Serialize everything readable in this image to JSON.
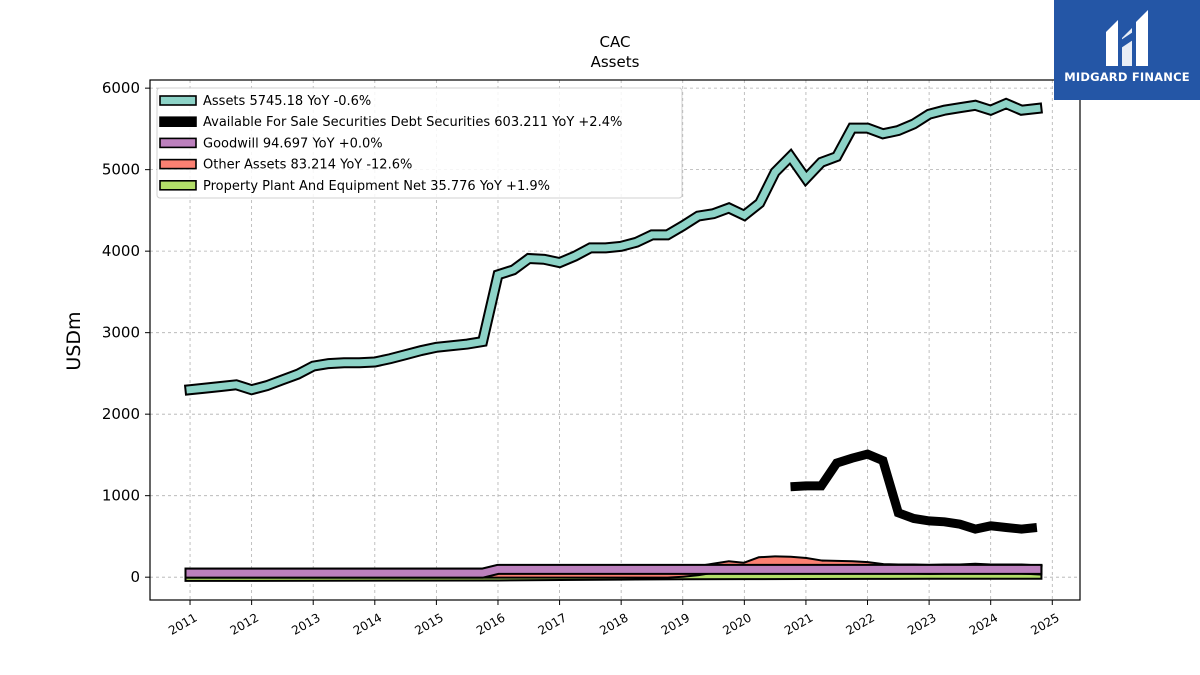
{
  "logo": {
    "text": "MIDGARD FINANCE",
    "icon": "midgard-finance-logo-icon",
    "color": "#2456a6"
  },
  "chart_data": {
    "type": "area",
    "title": "CAC",
    "subtitle": "Assets",
    "ylabel": "USDm",
    "ylim": [
      -280,
      6100
    ],
    "xlim": [
      2010.35,
      2025.45
    ],
    "yticks": [
      0,
      1000,
      2000,
      3000,
      4000,
      5000,
      6000
    ],
    "xticks": [
      "2011",
      "2012",
      "2013",
      "2014",
      "2015",
      "2016",
      "2017",
      "2018",
      "2019",
      "2020",
      "2021",
      "2022",
      "2023",
      "2024",
      "2025"
    ],
    "grid": true,
    "legend_position": "top-left",
    "series": [
      {
        "name": "Assets",
        "legend": "Assets  5745.18 YoY -0.6%",
        "color": "#8dd3c7",
        "style": "band",
        "x": [
          2011.0,
          2011.25,
          2011.5,
          2011.75,
          2012.0,
          2012.25,
          2012.5,
          2012.75,
          2013.0,
          2013.25,
          2013.5,
          2013.75,
          2014.0,
          2014.25,
          2014.5,
          2014.75,
          2015.0,
          2015.25,
          2015.5,
          2015.75,
          2016.0,
          2016.25,
          2016.5,
          2016.75,
          2017.0,
          2017.25,
          2017.5,
          2017.75,
          2018.0,
          2018.25,
          2018.5,
          2018.75,
          2019.0,
          2019.25,
          2019.5,
          2019.75,
          2020.0,
          2020.25,
          2020.5,
          2020.75,
          2021.0,
          2021.25,
          2021.5,
          2021.75,
          2022.0,
          2022.25,
          2022.5,
          2022.75,
          2023.0,
          2023.25,
          2023.5,
          2023.75,
          2024.0,
          2024.25,
          2024.5,
          2024.75
        ],
        "values": [
          2300,
          2320,
          2340,
          2360,
          2300,
          2350,
          2420,
          2490,
          2590,
          2620,
          2630,
          2630,
          2640,
          2680,
          2730,
          2780,
          2820,
          2840,
          2860,
          2890,
          3710,
          3770,
          3910,
          3900,
          3860,
          3940,
          4040,
          4040,
          4060,
          4110,
          4200,
          4200,
          4310,
          4430,
          4460,
          4530,
          4440,
          4590,
          4970,
          5160,
          4890,
          5090,
          5160,
          5510,
          5510,
          5440,
          5480,
          5560,
          5680,
          5730,
          5760,
          5790,
          5730,
          5810,
          5730,
          5750
        ]
      },
      {
        "name": "Available For Sale Securities Debt Securities",
        "legend": "Available For Sale Securities Debt Securities  603.211 YoY +2.4%",
        "color": "#000000",
        "style": "thick-line",
        "x": [
          2020.75,
          2021.0,
          2021.25,
          2021.5,
          2021.75,
          2022.0,
          2022.25,
          2022.5,
          2022.75,
          2023.0,
          2023.25,
          2023.5,
          2023.75,
          2024.0,
          2024.25,
          2024.5,
          2024.75
        ],
        "values": [
          1110,
          1120,
          1120,
          1400,
          1460,
          1510,
          1430,
          790,
          720,
          690,
          680,
          650,
          590,
          630,
          610,
          590,
          610
        ]
      },
      {
        "name": "Goodwill",
        "legend": "Goodwill  94.697 YoY +0.0%",
        "color": "#bc80bd",
        "style": "band",
        "x": [
          2011.0,
          2015.75,
          2016.0,
          2024.75
        ],
        "values": [
          50,
          50,
          95,
          95
        ]
      },
      {
        "name": "Other Assets",
        "legend": "Other Assets  83.214 YoY -12.6%",
        "color": "#fb8072",
        "style": "band",
        "x": [
          2011.0,
          2018.75,
          2019.0,
          2019.25,
          2019.5,
          2019.75,
          2020.0,
          2020.25,
          2020.5,
          2020.75,
          2021.0,
          2021.25,
          2021.5,
          2021.75,
          2022.0,
          2022.25,
          2022.5,
          2022.75,
          2023.0,
          2023.25,
          2023.5,
          2023.75,
          2024.0,
          2024.25,
          2024.5,
          2024.75
        ],
        "values": [
          50,
          50,
          60,
          80,
          110,
          140,
          120,
          190,
          200,
          195,
          180,
          150,
          145,
          140,
          130,
          105,
          100,
          100,
          95,
          100,
          100,
          110,
          100,
          100,
          100,
          90
        ]
      },
      {
        "name": "Property Plant And Equipment Net",
        "legend": "Property Plant And Equipment Net  35.776 YoY +1.9%",
        "color": "#b3de69",
        "style": "band",
        "x": [
          2011.0,
          2016.0,
          2017.0,
          2018.0,
          2019.0,
          2020.0,
          2021.0,
          2022.0,
          2023.0,
          2024.0,
          2024.75
        ],
        "values": [
          10,
          15,
          20,
          25,
          30,
          32,
          33,
          34,
          35,
          35,
          36
        ]
      }
    ]
  }
}
